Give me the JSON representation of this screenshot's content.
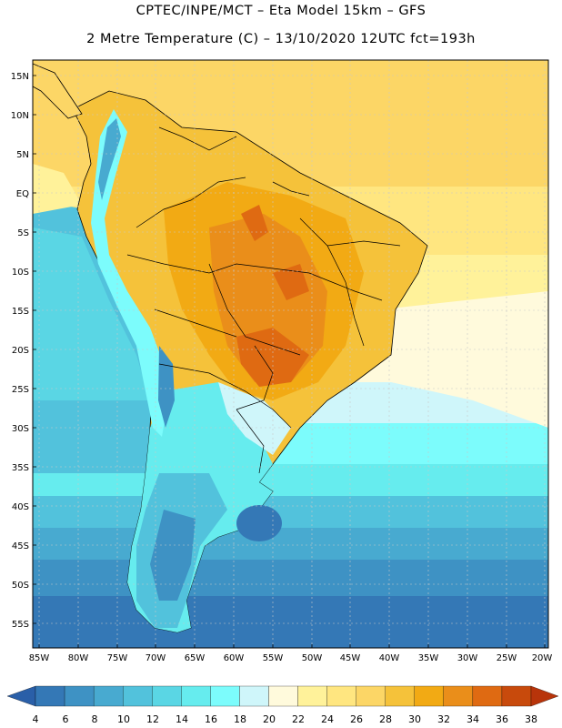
{
  "title": {
    "line1": "CPTEC/INPE/MCT –  Eta Model 15km – GFS",
    "line2": "2 Metre Temperature (C) – 13/10/2020 12UTC fct=193h"
  },
  "map": {
    "lat_labels": [
      "15N",
      "10N",
      "5N",
      "EQ",
      "5S",
      "10S",
      "15S",
      "20S",
      "25S",
      "30S",
      "35S",
      "40S",
      "45S",
      "50S",
      "55S"
    ],
    "lon_labels": [
      "85W",
      "80W",
      "75W",
      "70W",
      "65W",
      "60W",
      "55W",
      "50W",
      "45W",
      "40W",
      "35W",
      "30W",
      "25W",
      "20W"
    ]
  },
  "color_scale": {
    "labels": [
      "4",
      "6",
      "8",
      "10",
      "12",
      "14",
      "16",
      "18",
      "20",
      "22",
      "24",
      "26",
      "28",
      "30",
      "32",
      "34",
      "36",
      "38"
    ],
    "colors": [
      "#2a5fa8",
      "#3478b6",
      "#3e92c4",
      "#48aad0",
      "#52c2dc",
      "#5ad6e4",
      "#66ecee",
      "#7cfcfc",
      "#cff6fa",
      "#fffadc",
      "#fff29a",
      "#ffe680",
      "#fcd666",
      "#f5c23a",
      "#f2aa14",
      "#ea8e1a",
      "#df6a12",
      "#c84a0c",
      "#b8340a"
    ]
  }
}
